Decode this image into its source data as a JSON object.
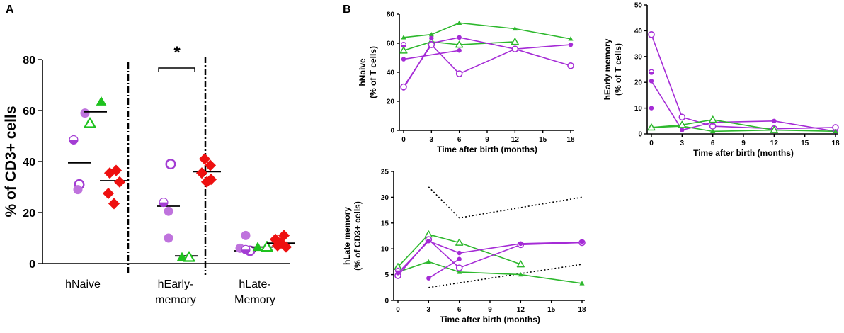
{
  "colors": {
    "preterm_purple": "#a33dd3",
    "preterm_light": "#bf73dd",
    "term_green": "#1ec21e",
    "adult_red": "#ee1010",
    "line_purple": "#a52bd6",
    "line_green": "#2db82d"
  },
  "chart_data": [
    {
      "id": "A",
      "type": "scatter",
      "panel_label": "A",
      "title": "",
      "ylabel": "% of CD3+ cells",
      "ylim": [
        0,
        80
      ],
      "yticks": [
        "0",
        "20",
        "40",
        "60",
        "80"
      ],
      "categories": [
        "hNaive",
        "hEarly-\nmemory",
        "hLate-\nMemory"
      ],
      "category_labels": [
        [
          "hNaive"
        ],
        [
          "hEarly-",
          "memory"
        ],
        [
          "hLate-",
          "Memory"
        ]
      ],
      "significance": "*",
      "series": [
        {
          "name": "preterm",
          "color": "#bf73dd",
          "groups": [
            {
              "category": 0,
              "mean": 39.5,
              "points": [
                {
                  "v": 59,
                  "s": "filled"
                },
                {
                  "v": 48.5,
                  "s": "half"
                },
                {
                  "v": 31,
                  "s": "open"
                },
                {
                  "v": 29,
                  "s": "filled"
                }
              ]
            },
            {
              "category": 1,
              "mean": 22.5,
              "points": [
                {
                  "v": 39,
                  "s": "open"
                },
                {
                  "v": 24,
                  "s": "half"
                },
                {
                  "v": 20.5,
                  "s": "filled"
                },
                {
                  "v": 10,
                  "s": "filled"
                }
              ]
            },
            {
              "category": 2,
              "mean": 5,
              "points": [
                {
                  "v": 11,
                  "s": "filled"
                },
                {
                  "v": 6,
                  "s": "filled"
                },
                {
                  "v": 5,
                  "s": "open"
                },
                {
                  "v": 5.5,
                  "s": "half"
                }
              ]
            }
          ]
        },
        {
          "name": "term",
          "color": "#1ec21e",
          "groups": [
            {
              "category": 0,
              "mean": 59.5,
              "points": [
                {
                  "v": 63.5,
                  "s": "filled"
                },
                {
                  "v": 55,
                  "s": "open"
                }
              ]
            },
            {
              "category": 1,
              "mean": 3,
              "points": [
                {
                  "v": 2.5,
                  "s": "filled"
                },
                {
                  "v": 2.5,
                  "s": "open"
                }
              ]
            },
            {
              "category": 2,
              "mean": 6.5,
              "points": [
                {
                  "v": 6.5,
                  "s": "filled"
                },
                {
                  "v": 6.5,
                  "s": "open"
                }
              ]
            }
          ]
        },
        {
          "name": "adult",
          "color": "#ee1010",
          "groups": [
            {
              "category": 0,
              "mean": 32.5,
              "points": [
                {
                  "v": 36.5
                },
                {
                  "v": 35.5
                },
                {
                  "v": 32
                },
                {
                  "v": 27.5
                },
                {
                  "v": 23.5
                }
              ]
            },
            {
              "category": 1,
              "mean": 36,
              "points": [
                {
                  "v": 41
                },
                {
                  "v": 38.5
                },
                {
                  "v": 35.5
                },
                {
                  "v": 33
                },
                {
                  "v": 32
                }
              ]
            },
            {
              "category": 2,
              "mean": 8,
              "points": [
                {
                  "v": 11
                },
                {
                  "v": 9.5
                },
                {
                  "v": 8
                },
                {
                  "v": 7
                },
                {
                  "v": 6.5
                }
              ]
            }
          ]
        }
      ]
    },
    {
      "id": "B1",
      "type": "line",
      "panel_label": "B",
      "xlabel": "Time after birth (months)",
      "ylabel": [
        "hNaive",
        "(% of T cells)"
      ],
      "xlim": [
        0,
        18
      ],
      "ylim": [
        0,
        80
      ],
      "xticks": [
        0,
        3,
        6,
        9,
        12,
        15,
        18
      ],
      "yticks": [
        0,
        20,
        40,
        60,
        80
      ],
      "series": [
        {
          "name": "term-filled",
          "color": "#2db82d",
          "marker": "triangle-filled",
          "x": [
            0,
            3,
            6,
            12,
            18
          ],
          "y": [
            64,
            66,
            74,
            70,
            63
          ]
        },
        {
          "name": "term-open",
          "color": "#2db82d",
          "marker": "triangle-open",
          "x": [
            0,
            3,
            6,
            12
          ],
          "y": [
            55,
            61,
            59,
            61
          ]
        },
        {
          "name": "preterm-filled-1",
          "color": "#a52bd6",
          "marker": "circle-filled",
          "x": [
            0,
            3,
            6,
            12,
            18
          ],
          "y": [
            29,
            60,
            64,
            56,
            59
          ]
        },
        {
          "name": "preterm-open",
          "color": "#a52bd6",
          "marker": "circle-open",
          "x": [
            0,
            3,
            6,
            12,
            18
          ],
          "y": [
            30,
            59,
            39,
            56,
            44.5
          ]
        },
        {
          "name": "preterm-half",
          "color": "#a52bd6",
          "marker": "circle-half",
          "x": [
            0
          ],
          "y": [
            59
          ]
        },
        {
          "name": "preterm-filled-2",
          "color": "#a52bd6",
          "marker": "circle-filled",
          "x": [
            0,
            6
          ],
          "y": [
            49,
            55
          ]
        },
        {
          "name": "preterm-filled-3",
          "color": "#a52bd6",
          "marker": "circle-filled",
          "x": [
            3
          ],
          "y": [
            63.5
          ]
        }
      ]
    },
    {
      "id": "B2",
      "type": "line",
      "panel_label": "",
      "xlabel": "Time after birth (months)",
      "ylabel": [
        "hEarly memory",
        "(% of T cells)"
      ],
      "xlim": [
        0,
        18
      ],
      "ylim": [
        0,
        50
      ],
      "xticks": [
        0,
        3,
        6,
        9,
        12,
        15,
        18
      ],
      "yticks": [
        0,
        10,
        20,
        30,
        40,
        50
      ],
      "series": [
        {
          "name": "preterm-open",
          "color": "#a52bd6",
          "marker": "circle-open",
          "x": [
            0,
            3,
            6,
            12,
            18
          ],
          "y": [
            38.5,
            6.5,
            3,
            2,
            2.5
          ]
        },
        {
          "name": "preterm-filled-1",
          "color": "#a52bd6",
          "marker": "circle-filled",
          "x": [
            0,
            3,
            6,
            12,
            18
          ],
          "y": [
            20.5,
            1.5,
            4.5,
            5,
            1
          ]
        },
        {
          "name": "preterm-half",
          "color": "#a52bd6",
          "marker": "circle-half",
          "x": [
            0
          ],
          "y": [
            24
          ]
        },
        {
          "name": "preterm-filled-2",
          "color": "#a52bd6",
          "marker": "circle-filled",
          "x": [
            0
          ],
          "y": [
            10
          ]
        },
        {
          "name": "term-filled",
          "color": "#2db82d",
          "marker": "triangle-filled",
          "x": [
            0,
            3,
            6,
            12,
            18
          ],
          "y": [
            2.5,
            3,
            1,
            1.5,
            1
          ]
        },
        {
          "name": "term-open",
          "color": "#2db82d",
          "marker": "triangle-open",
          "x": [
            0,
            3,
            6,
            12
          ],
          "y": [
            2.5,
            3.5,
            5.5,
            1.5
          ]
        }
      ]
    },
    {
      "id": "B3",
      "type": "line",
      "panel_label": "",
      "xlabel": "Time after birth (months)",
      "ylabel": [
        "hLate memory",
        "(% of CD3+ cells)"
      ],
      "xlim": [
        0,
        18
      ],
      "ylim": [
        0,
        25
      ],
      "xticks": [
        0,
        3,
        6,
        9,
        12,
        15,
        18
      ],
      "yticks": [
        0,
        5,
        10,
        15,
        20,
        25
      ],
      "reference_lines": [
        {
          "name": "upper",
          "x": [
            3,
            6,
            18
          ],
          "y": [
            22,
            16,
            20
          ]
        },
        {
          "name": "lower",
          "x": [
            3,
            18
          ],
          "y": [
            2.5,
            7
          ]
        }
      ],
      "series": [
        {
          "name": "term-filled",
          "color": "#2db82d",
          "marker": "triangle-filled",
          "x": [
            0,
            3,
            6,
            12,
            18
          ],
          "y": [
            5.5,
            7.5,
            5.5,
            5,
            3.3
          ]
        },
        {
          "name": "term-open",
          "color": "#2db82d",
          "marker": "triangle-open",
          "x": [
            0,
            3,
            6,
            12
          ],
          "y": [
            6.5,
            12.8,
            11.2,
            7
          ]
        },
        {
          "name": "preterm-open",
          "color": "#a52bd6",
          "marker": "circle-open",
          "x": [
            0,
            3,
            6,
            12,
            18
          ],
          "y": [
            4.8,
            11.8,
            6.3,
            10.8,
            11.2
          ]
        },
        {
          "name": "preterm-filled-1",
          "color": "#a52bd6",
          "marker": "circle-filled",
          "x": [
            0,
            3,
            6,
            12,
            18
          ],
          "y": [
            5.3,
            11.5,
            9.2,
            11,
            11.3
          ]
        },
        {
          "name": "preterm-filled-2",
          "color": "#a52bd6",
          "marker": "circle-filled",
          "x": [
            3,
            6
          ],
          "y": [
            4.3,
            8
          ]
        },
        {
          "name": "preterm-half",
          "color": "#a52bd6",
          "marker": "circle-half",
          "x": [
            0
          ],
          "y": [
            5.8
          ]
        }
      ]
    }
  ]
}
